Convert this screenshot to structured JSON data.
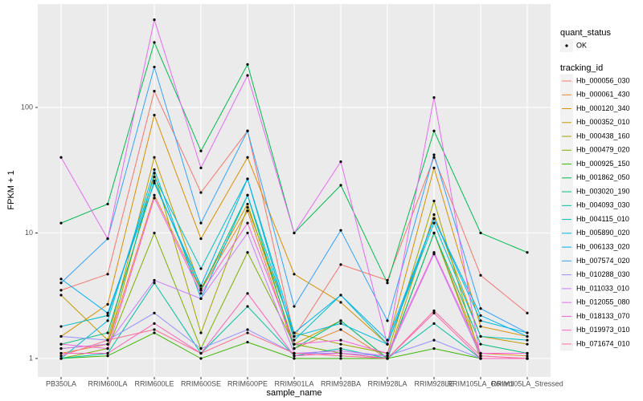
{
  "chart_data": {
    "type": "line",
    "x_label": "sample_name",
    "y_label": "FPKM + 1",
    "categories": [
      "PB350LA",
      "RRIM600LA",
      "RRIM600LE",
      "RRIM600SE",
      "RRIM600PE",
      "RRIM901LA",
      "RRIM928BA",
      "RRIM928LA",
      "RRIM928LE",
      "RRIM105LA_Control",
      "RRIM105LA_Stressed"
    ],
    "ylim": [
      0.713,
      667
    ],
    "yticks": [
      1,
      10,
      100
    ],
    "log_scale": true,
    "grid": true,
    "point_color": "#000000",
    "legend_position": "right",
    "shape_legend": {
      "title": "quant_status",
      "entries": [
        "OK"
      ]
    },
    "legend_title": "tracking_id",
    "series": [
      {
        "name": "Hb_000056_030",
        "color": "#F8766D",
        "values": [
          3.5,
          4.7,
          135,
          21,
          65,
          1.5,
          5.6,
          4.2,
          40,
          4.6,
          2.3
        ]
      },
      {
        "name": "Hb_000061_430",
        "color": "#EA8331",
        "values": [
          1.1,
          1.3,
          20,
          3.5,
          15,
          1.2,
          1.7,
          1.0,
          10,
          1.1,
          1.05
        ]
      },
      {
        "name": "Hb_000120_340",
        "color": "#D89000",
        "values": [
          1.5,
          2.7,
          87,
          9,
          40,
          4.7,
          2.8,
          1.3,
          33,
          1.8,
          1.5
        ]
      },
      {
        "name": "Hb_000352_010",
        "color": "#C09B00",
        "values": [
          3.2,
          1.4,
          40,
          3.6,
          17,
          1.3,
          2.0,
          1.0,
          14,
          1.5,
          1.3
        ]
      },
      {
        "name": "Hb_000438_160",
        "color": "#A3A500",
        "values": [
          1.2,
          1.3,
          30,
          1.6,
          16,
          1.6,
          1.3,
          1.1,
          18,
          1.0,
          1.0
        ]
      },
      {
        "name": "Hb_000479_020",
        "color": "#7CAE00",
        "values": [
          1.0,
          1.2,
          10,
          1.2,
          7,
          1.3,
          1.1,
          1.0,
          10,
          1.0,
          1.0
        ]
      },
      {
        "name": "Hb_000925_150",
        "color": "#39B600",
        "values": [
          1.0,
          1.05,
          1.6,
          1.0,
          1.35,
          1.0,
          1.0,
          1.0,
          1.2,
          1.0,
          1.0
        ]
      },
      {
        "name": "Hb_001862_050",
        "color": "#00BB4E",
        "values": [
          12,
          17,
          330,
          45,
          220,
          10,
          24,
          4.0,
          65,
          10,
          7
        ]
      },
      {
        "name": "Hb_003020_190",
        "color": "#00BF7D",
        "values": [
          1.3,
          1.6,
          26,
          3.5,
          20,
          1.2,
          2.0,
          1.0,
          10,
          1.3,
          1.1
        ]
      },
      {
        "name": "Hb_004093_030",
        "color": "#00C1A3",
        "values": [
          1.0,
          1.1,
          4.0,
          1.1,
          2.6,
          1.05,
          1.2,
          1.0,
          1.9,
          1.0,
          1.0
        ]
      },
      {
        "name": "Hb_004115_010",
        "color": "#00BFC4",
        "values": [
          1.8,
          2.2,
          28,
          5.2,
          27,
          1.4,
          3.2,
          1.3,
          12,
          1.5,
          1.4
        ]
      },
      {
        "name": "Hb_005890_020",
        "color": "#00BAE0",
        "values": [
          1.0,
          2.0,
          32,
          3.0,
          20,
          1.5,
          1.9,
          1.3,
          13,
          2.0,
          1.6
        ]
      },
      {
        "name": "Hb_006133_020",
        "color": "#00B0F6",
        "values": [
          4.3,
          2.3,
          25,
          3.8,
          27,
          1.6,
          3.2,
          1.4,
          13,
          2.2,
          1.5
        ]
      },
      {
        "name": "Hb_007574_020",
        "color": "#35A2FF",
        "values": [
          4,
          9,
          210,
          12,
          65,
          2.6,
          10.5,
          2,
          42,
          2.5,
          1.6
        ]
      },
      {
        "name": "Hb_010288_030",
        "color": "#9590FF",
        "values": [
          1.5,
          1.4,
          2.3,
          1.2,
          1.7,
          1.1,
          1.1,
          1.05,
          1.4,
          1.0,
          1.0
        ]
      },
      {
        "name": "Hb_011033_010",
        "color": "#C77CFF",
        "values": [
          1.2,
          1.3,
          4.2,
          3.0,
          10,
          1.1,
          1.15,
          1.05,
          6.8,
          1.05,
          1.0
        ]
      },
      {
        "name": "Hb_012055_080",
        "color": "#E76BF3",
        "values": [
          40,
          9,
          500,
          33,
          180,
          10,
          37,
          1.3,
          120,
          1.0,
          1.0
        ]
      },
      {
        "name": "Hb_018133_070",
        "color": "#FA62DB",
        "values": [
          1.3,
          1.2,
          19,
          3.3,
          12,
          1.3,
          1.4,
          1.1,
          7,
          1.1,
          1.1
        ]
      },
      {
        "name": "Hb_019973_010",
        "color": "#FF62BC",
        "values": [
          1.1,
          1.1,
          1.9,
          1.1,
          3.3,
          1.05,
          1.1,
          1.0,
          2.3,
          1.0,
          1.0
        ]
      },
      {
        "name": "Hb_071674_010",
        "color": "#FF6C91",
        "values": [
          1.05,
          1.4,
          1.7,
          1.1,
          1.6,
          1.1,
          1.05,
          1.0,
          2.4,
          1.05,
          1.0
        ]
      }
    ]
  }
}
